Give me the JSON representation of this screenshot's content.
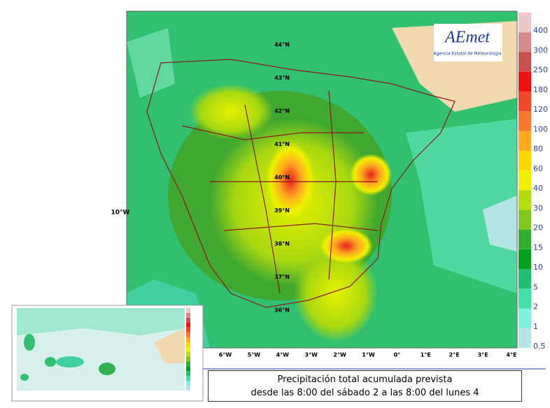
{
  "map": {
    "logo": {
      "name": "AEmet",
      "subtitle": "Agencia Estatal de Meteorología"
    },
    "latitude_labels": [
      "44°N",
      "43°N",
      "42°N",
      "41°N",
      "40°N",
      "39°N",
      "38°N",
      "37°N",
      "36°N"
    ],
    "longitude_labels": [
      "6°W",
      "5°W",
      "4°W",
      "3°W",
      "2°W",
      "1°W",
      "0°",
      "1°E",
      "2°E",
      "3°E",
      "4°E"
    ],
    "western_label": "10°W",
    "legend": {
      "values": [
        0.5,
        1,
        2,
        5,
        10,
        15,
        20,
        30,
        40,
        60,
        80,
        100,
        120,
        180,
        250,
        300,
        400
      ],
      "colors": [
        "#b4e4e4",
        "#7ff0dc",
        "#40e0a8",
        "#20c070",
        "#00a020",
        "#30b030",
        "#80c820",
        "#b4dc10",
        "#f0f000",
        "#ffd800",
        "#ffa820",
        "#f87830",
        "#f04828",
        "#f01010",
        "#c85050",
        "#d88888",
        "#ecc8c8"
      ]
    }
  },
  "caption": {
    "lines": [
      "Precipitación total acumulada prevista",
      "desde las 8:00 del sábado 2 a las 8:00 del lunes 4"
    ]
  }
}
